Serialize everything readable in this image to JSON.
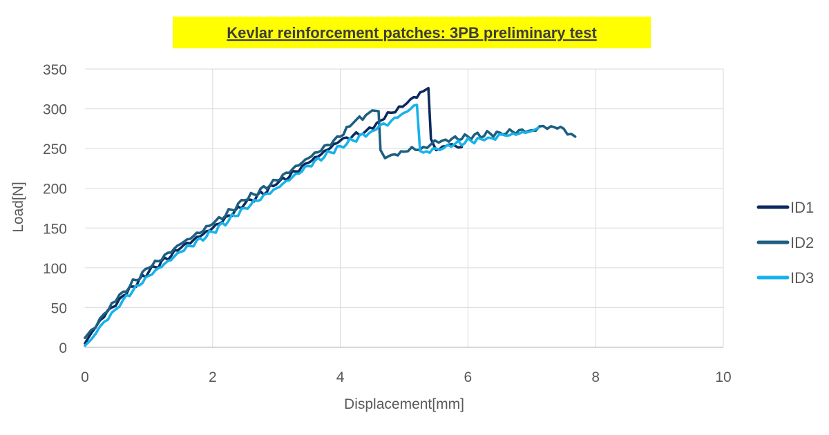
{
  "chart_data": {
    "type": "line",
    "title": "Kevlar reinforcement patches: 3PB preliminary test",
    "xlabel": "Displacement[mm]",
    "ylabel": "Load[N]",
    "xlim": [
      0,
      10
    ],
    "ylim": [
      0,
      350
    ],
    "xticks": [
      0,
      2,
      4,
      6,
      8,
      10
    ],
    "yticks": [
      0,
      50,
      100,
      150,
      200,
      250,
      300,
      350
    ],
    "grid": true,
    "legend_position": "right",
    "title_highlight": "#ffff00",
    "series": [
      {
        "name": "ID1",
        "color": "#0d2a5e",
        "x": [
          0,
          0.1,
          0.3,
          0.6,
          1.0,
          1.5,
          2.0,
          2.5,
          3.0,
          3.5,
          4.0,
          4.4,
          4.8,
          5.1,
          5.3,
          5.38,
          5.42,
          5.5,
          5.7,
          5.9
        ],
        "y": [
          5,
          18,
          38,
          65,
          95,
          125,
          150,
          180,
          205,
          232,
          260,
          272,
          295,
          312,
          322,
          326,
          262,
          248,
          255,
          252
        ]
      },
      {
        "name": "ID2",
        "color": "#1d5f80",
        "x": [
          0,
          0.1,
          0.3,
          0.6,
          1.0,
          1.5,
          2.0,
          2.5,
          3.0,
          3.5,
          4.0,
          4.2,
          4.4,
          4.5,
          4.6,
          4.63,
          4.7,
          4.8,
          5.0,
          5.3,
          5.6,
          6.0,
          6.5,
          7.0,
          7.3,
          7.5,
          7.68
        ],
        "y": [
          12,
          22,
          42,
          70,
          100,
          130,
          155,
          185,
          210,
          238,
          265,
          282,
          292,
          298,
          297,
          248,
          238,
          242,
          246,
          252,
          260,
          265,
          270,
          273,
          278,
          275,
          265
        ]
      },
      {
        "name": "ID3",
        "color": "#16b2ec",
        "x": [
          0,
          0.1,
          0.3,
          0.6,
          1.0,
          1.5,
          2.0,
          2.5,
          3.0,
          3.5,
          4.0,
          4.5,
          4.8,
          5.0,
          5.2,
          5.25,
          5.3,
          5.5,
          5.8,
          6.2,
          6.6,
          7.0,
          7.1
        ],
        "y": [
          2,
          10,
          32,
          60,
          90,
          120,
          145,
          175,
          200,
          228,
          253,
          272,
          285,
          295,
          305,
          247,
          245,
          250,
          256,
          262,
          266,
          272,
          276
        ]
      }
    ]
  }
}
